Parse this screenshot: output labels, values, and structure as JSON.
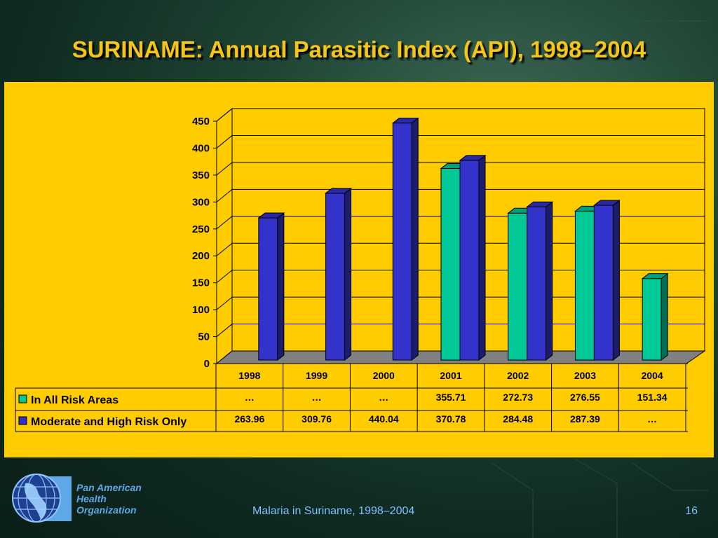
{
  "title": "SURINAME: Annual Parasitic Index (API), 1998–2004",
  "chart_data": {
    "type": "bar",
    "categories": [
      "1998",
      "1999",
      "2000",
      "2001",
      "2002",
      "2003",
      "2004"
    ],
    "series": [
      {
        "name": "In All Risk Areas",
        "color": "#00c896",
        "values": [
          null,
          null,
          null,
          355.71,
          272.73,
          276.55,
          151.34
        ],
        "labels": [
          "…",
          "…",
          "…",
          "355.71",
          "272.73",
          "276.55",
          "151.34"
        ]
      },
      {
        "name": "Moderate and High Risk Only",
        "color": "#3333cc",
        "values": [
          263.96,
          309.76,
          440.04,
          370.78,
          284.48,
          287.39,
          null
        ],
        "labels": [
          "263.96",
          "309.76",
          "440.04",
          "370.78",
          "284.48",
          "287.39",
          "…"
        ]
      }
    ],
    "yticks": [
      "0",
      "50",
      "100",
      "150",
      "200",
      "250",
      "300",
      "350",
      "400",
      "450"
    ],
    "ylim": [
      0,
      450
    ],
    "grid": true,
    "style": "3d-column-with-data-table"
  },
  "footer": {
    "org_lines": [
      "Pan American",
      "Health",
      "Organization"
    ],
    "caption": "Malaria in Suriname, 1998–2004",
    "page": "16"
  },
  "colors": {
    "title": "#f6c516",
    "panel": "#ffcc00",
    "footer_text": "#7cc0ff"
  }
}
